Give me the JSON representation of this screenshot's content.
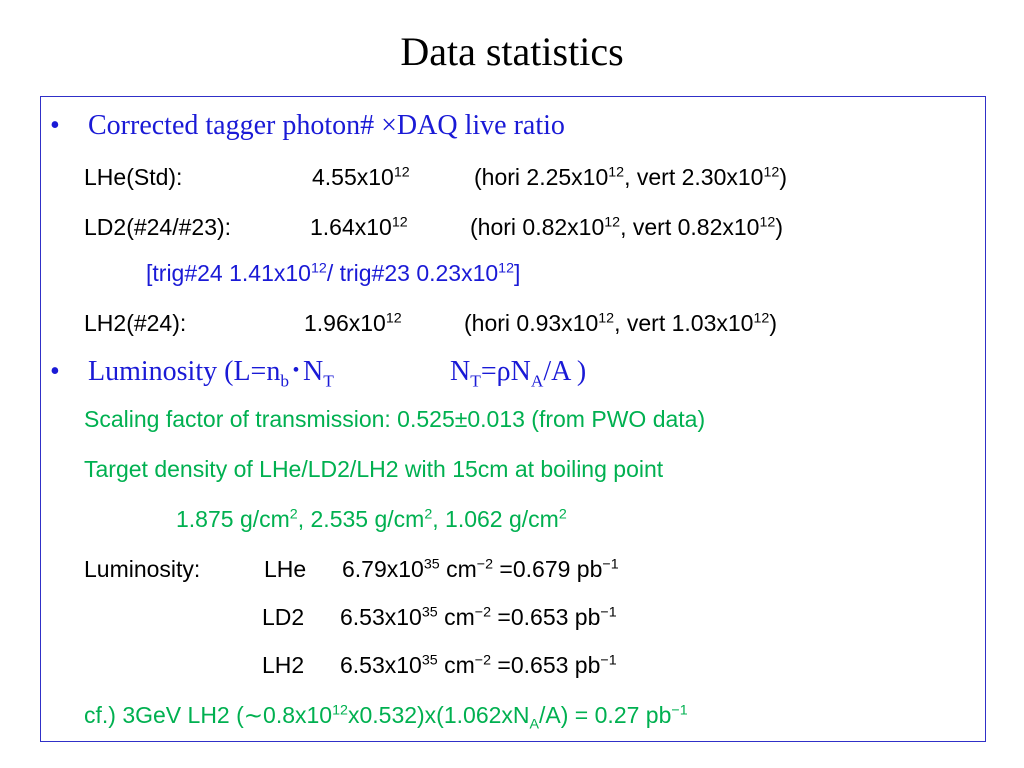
{
  "title": "Data statistics",
  "bullet_char": "•",
  "colors": {
    "heading": "#1a1ad6",
    "highlight": "#00b050",
    "text": "#000000",
    "border": "#3030c8"
  },
  "section1": {
    "heading": "Corrected tagger photon# ×DAQ live ratio",
    "rows": [
      {
        "label": "LHe(Std):",
        "total": "4.55x10",
        "total_exp": "12",
        "detail_pre": "(hori 2.25x10",
        "detail_exp1": "12",
        "detail_mid": ", vert 2.30x10",
        "detail_exp2": "12",
        "detail_post": ")"
      },
      {
        "label": "LD2(#24/#23):",
        "total": "1.64x10",
        "total_exp": "12",
        "detail_pre": "(hori 0.82x10",
        "detail_exp1": "12",
        "detail_mid": ", vert 0.82x10",
        "detail_exp2": "12",
        "detail_post": ")"
      },
      {
        "label": "LH2(#24):",
        "total": "1.96x10",
        "total_exp": "12",
        "detail_pre": "(hori 0.93x10",
        "detail_exp1": "12",
        "detail_mid": ", vert 1.03x10",
        "detail_exp2": "12",
        "detail_post": ")"
      }
    ],
    "trig": {
      "open": "[",
      "a": "trig#24 1.41x10",
      "a_exp": "12",
      "sep": "/ trig#23 0.23x10",
      "b_exp": "12",
      "close": "]"
    }
  },
  "section2": {
    "heading": {
      "p1": "Luminosity  (L=n",
      "s1": "b",
      "p2": "･N",
      "s2": "T",
      "p3": "N",
      "s3": "T",
      "p4": "=ρN",
      "s4": "A",
      "p5": "/A  )"
    },
    "scaling": "Scaling factor of transmission: 0.525±0.013  (from PWO data)",
    "density_text": "Target density of LHe/LD2/LH2 with 15cm at boiling point",
    "density_values": {
      "v1": "1.875 g/cm",
      "e1": "2",
      "v2": ", 2.535 g/cm",
      "e2": "2",
      "v3": ", 1.062 g/cm",
      "e3": "2"
    },
    "lumi_label": "Luminosity:",
    "lumi_rows": [
      {
        "target": "LHe",
        "val": "6.79x10",
        "exp": "35",
        "unit": " cm",
        "unit_exp": "−2",
        "eq": " =0.679 pb",
        "pb_exp": "−1"
      },
      {
        "target": "LD2",
        "val": "6.53x10",
        "exp": "35",
        "unit": " cm",
        "unit_exp": "−2",
        "eq": " =0.653 pb",
        "pb_exp": "−1"
      },
      {
        "target": "LH2",
        "val": "6.53x10",
        "exp": "35",
        "unit": " cm",
        "unit_exp": "−2",
        "eq": " =0.653 pb",
        "pb_exp": "−1"
      }
    ],
    "cf": {
      "p1": "cf.) 3GeV LH2 (∼0.8x10",
      "e1": "12",
      "p2": "x0.532)x(1.062xN",
      "s1": "A",
      "p3": "/A) = 0.27 pb",
      "e2": "−1"
    }
  }
}
